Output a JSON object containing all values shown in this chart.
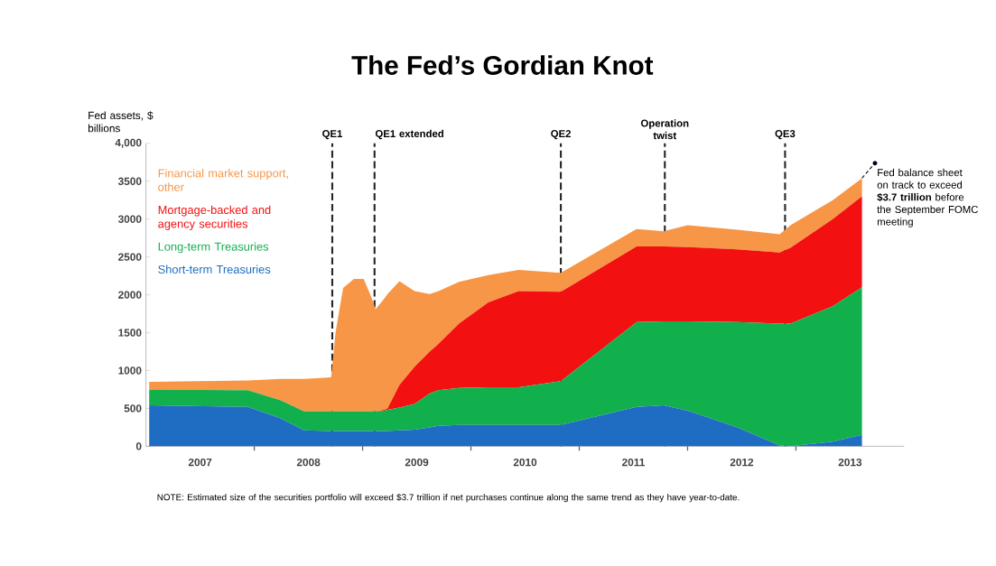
{
  "chart_data": {
    "type": "area",
    "title": "The Fed’s Gordian Knot",
    "ylabel": "Fed assets, $ billions",
    "stacked": true,
    "legend": "top left",
    "grid": false,
    "x": [
      2007.03,
      2007.94,
      2008.24,
      2008.46,
      2008.71,
      2008.75,
      2008.82,
      2008.92,
      2009.01,
      2009.08,
      2009.12,
      2009.2,
      2009.23,
      2009.34,
      2009.48,
      2009.62,
      2009.7,
      2009.89,
      2010.16,
      2010.44,
      2010.83,
      2011.53,
      2011.78,
      2012.0,
      2012.46,
      2012.85,
      2012.95,
      2013.34,
      2013.61
    ],
    "series": [
      {
        "name": "Short-term Treasuries",
        "color": "#1f6dc2",
        "values": [
          540,
          520,
          370,
          210,
          200,
          200,
          200,
          200,
          200,
          200,
          200,
          200,
          200,
          210,
          220,
          250,
          270,
          280,
          280,
          280,
          280,
          520,
          540,
          470,
          250,
          10,
          0,
          60,
          150
        ]
      },
      {
        "name": "Long-term Treasuries",
        "color": "#12b04c",
        "values": [
          210,
          220,
          240,
          250,
          260,
          260,
          260,
          260,
          260,
          260,
          260,
          270,
          280,
          300,
          340,
          450,
          470,
          490,
          500,
          500,
          580,
          1120,
          1110,
          1180,
          1390,
          1610,
          1620,
          1790,
          1950
        ]
      },
      {
        "name": "Mortgage-backed and agency securities",
        "color": "#f21010",
        "values": [
          0,
          0,
          0,
          0,
          0,
          0,
          0,
          0,
          0,
          0,
          0,
          10,
          20,
          300,
          490,
          550,
          610,
          850,
          1120,
          1270,
          1180,
          1000,
          990,
          980,
          960,
          940,
          1000,
          1150,
          1200
        ]
      },
      {
        "name": "Financial market support, other",
        "color": "#f79646",
        "values": [
          100,
          130,
          280,
          430,
          450,
          1040,
          1630,
          1750,
          1750,
          1510,
          1350,
          1470,
          1510,
          1370,
          1000,
          760,
          700,
          550,
          360,
          280,
          250,
          230,
          200,
          290,
          260,
          240,
          300,
          250,
          240
        ]
      }
    ],
    "xlim": [
      2007,
      2014
    ],
    "xticks": [
      {
        "value": 2007.5,
        "label": "2007"
      },
      {
        "value": 2008.5,
        "label": "2008"
      },
      {
        "value": 2009.5,
        "label": "2009"
      },
      {
        "value": 2010.5,
        "label": "2010"
      },
      {
        "value": 2011.5,
        "label": "2011"
      },
      {
        "value": 2012.5,
        "label": "2012"
      },
      {
        "value": 2013.5,
        "label": "2013"
      },
      {
        "value": 2008,
        "label": null
      },
      {
        "value": 2009,
        "label": null
      },
      {
        "value": 2010,
        "label": null
      },
      {
        "value": 2011,
        "label": null
      },
      {
        "value": 2012,
        "label": null
      },
      {
        "value": 2013,
        "label": null
      }
    ],
    "ylim": [
      0,
      4000
    ],
    "yticks": [
      0,
      500,
      1000,
      1500,
      2000,
      2500,
      3000,
      3500,
      {
        "value": 4000,
        "label": "4,000"
      }
    ],
    "ref_lines": [
      {
        "axis": "x",
        "value": 2008.72,
        "label": "QE1",
        "line_style": "dashed"
      },
      {
        "axis": "x",
        "value": 2009.11,
        "label": "QE1 extended",
        "line_style": "dashed"
      },
      {
        "axis": "x",
        "value": 2010.83,
        "label": "QE2",
        "line_style": "dashed"
      },
      {
        "axis": "x",
        "value": 2011.79,
        "label": "Operation twist",
        "line_style": "dashed"
      },
      {
        "axis": "x",
        "value": 2012.9,
        "label": "QE3",
        "line_style": "dashed"
      }
    ],
    "annotations": [
      {
        "text": "Fed balance sheet on track to exceed **$3.7 trillion** before the September FOMC meeting",
        "x": 2013.73,
        "y": 3740
      },
      "NOTE: Estimated size of the securities portfolio will exceed $3.7 trillion if net purchases continue along the same trend as they have year-to-date."
    ]
  }
}
